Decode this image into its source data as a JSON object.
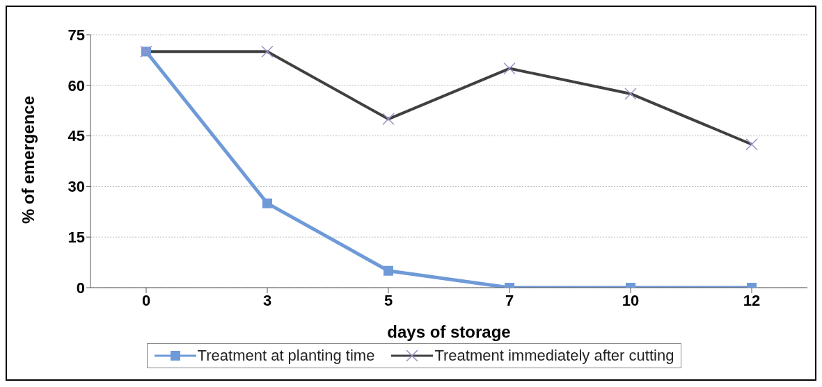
{
  "chart_data": {
    "type": "line",
    "xlabel": "days of storage",
    "ylabel": "% of emergence",
    "categories": [
      "0",
      "3",
      "5",
      "7",
      "10",
      "12"
    ],
    "series": [
      {
        "name": "Treatment at planting time",
        "color": "#6f9ad8",
        "marker": "square",
        "values": [
          70,
          25,
          5,
          0,
          0,
          0
        ]
      },
      {
        "name": "Treatment immediately after cutting",
        "color": "#404040",
        "marker": "cross",
        "values": [
          70,
          70,
          50,
          65,
          57.5,
          42.5
        ]
      }
    ],
    "ylim": [
      0,
      75
    ],
    "yticks": [
      0,
      15,
      30,
      45,
      60,
      75
    ],
    "grid": "y",
    "legend": "bottom",
    "line_style": "solid"
  }
}
